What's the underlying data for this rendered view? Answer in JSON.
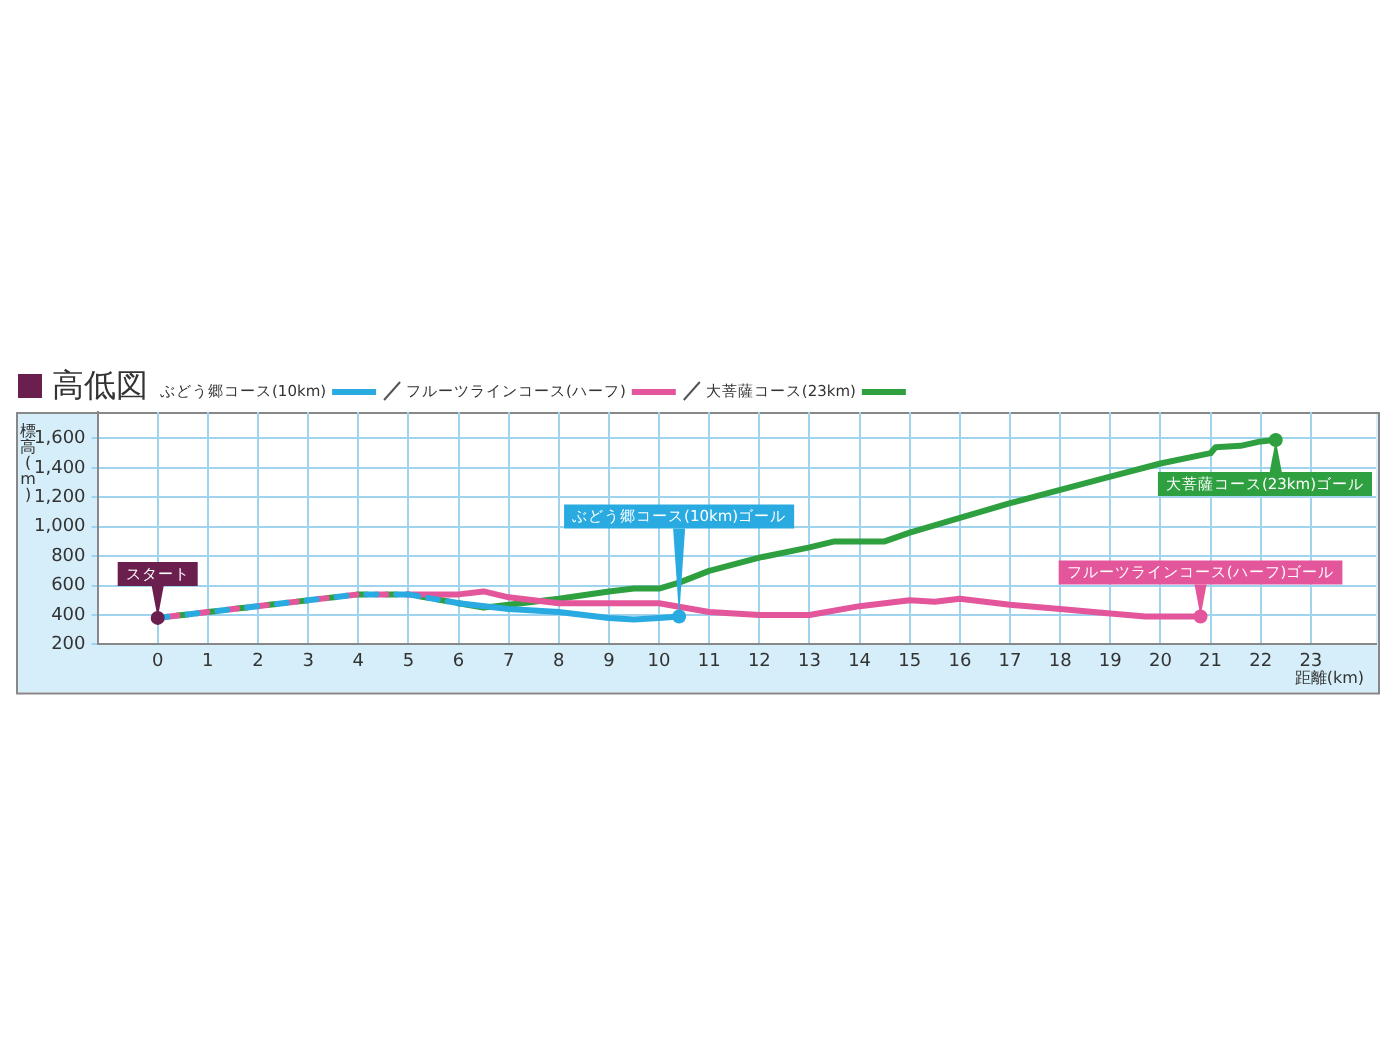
{
  "chart_data": {
    "type": "line",
    "title": "高低図",
    "xlabel": "距離(km)",
    "ylabel": "標高(m)",
    "xlim": [
      -1.2,
      24.3
    ],
    "xticks": [
      0,
      1,
      2,
      3,
      4,
      5,
      6,
      7,
      8,
      9,
      10,
      11,
      12,
      13,
      14,
      15,
      16,
      17,
      18,
      19,
      20,
      21,
      22,
      23
    ],
    "ylim": [
      200,
      1780
    ],
    "yticks": [
      200,
      400,
      600,
      800,
      {
        "value": 1000,
        "label": "1,000"
      },
      {
        "value": 1200,
        "label": "1,200"
      },
      {
        "value": 1400,
        "label": "1,400"
      },
      {
        "value": 1600,
        "label": "1,600"
      }
    ],
    "grid": true,
    "legend": "top",
    "marker": "none",
    "line_style": "solid",
    "series": [
      {
        "name": "ぶどう郷コース(10km)",
        "color": "#29abe2",
        "x": [
          0,
          1,
          2,
          3,
          4,
          5,
          6,
          7,
          8,
          9,
          9.5,
          10,
          10.4
        ],
        "values": [
          380,
          420,
          460,
          500,
          540,
          540,
          480,
          440,
          420,
          380,
          370,
          380,
          390
        ]
      },
      {
        "name": "フルーツラインコース(ハーフ)",
        "color": "#e4569b",
        "x": [
          0,
          1,
          2,
          3,
          4,
          5,
          6,
          6.5,
          7,
          8,
          9,
          10,
          11,
          12,
          13,
          14,
          15,
          15.5,
          16,
          17,
          18,
          19,
          19.7,
          20.8
        ],
        "values": [
          380,
          420,
          460,
          500,
          540,
          540,
          540,
          560,
          520,
          480,
          480,
          480,
          420,
          400,
          400,
          460,
          500,
          490,
          510,
          470,
          440,
          410,
          390,
          390
        ]
      },
      {
        "name": "大菩薩コース(23km)",
        "color": "#2fa040",
        "x": [
          0,
          1,
          2,
          3,
          4,
          5,
          6,
          6.5,
          7,
          8,
          9,
          9.5,
          10,
          10.4,
          11,
          12,
          13,
          13.5,
          14.5,
          15,
          16,
          17,
          18,
          19,
          20,
          21,
          21.1,
          21.6,
          22,
          22.3
        ],
        "values": [
          380,
          420,
          460,
          500,
          540,
          540,
          480,
          450,
          470,
          510,
          560,
          580,
          580,
          620,
          700,
          790,
          860,
          900,
          900,
          960,
          1060,
          1160,
          1250,
          1340,
          1430,
          1500,
          1540,
          1550,
          1580,
          1590
        ]
      }
    ],
    "annotations": [
      {
        "text": "スタート",
        "x": 0,
        "y": 380
      },
      {
        "text": "ぶどう郷コース(10km)ゴール",
        "x": 10.4,
        "y": 390
      },
      {
        "text": "フルーツラインコース(ハーフ)ゴール",
        "x": 20.8,
        "y": 390
      },
      {
        "text": "大菩薩コース(23km)ゴール",
        "x": 22.3,
        "y": 1590
      }
    ]
  }
}
